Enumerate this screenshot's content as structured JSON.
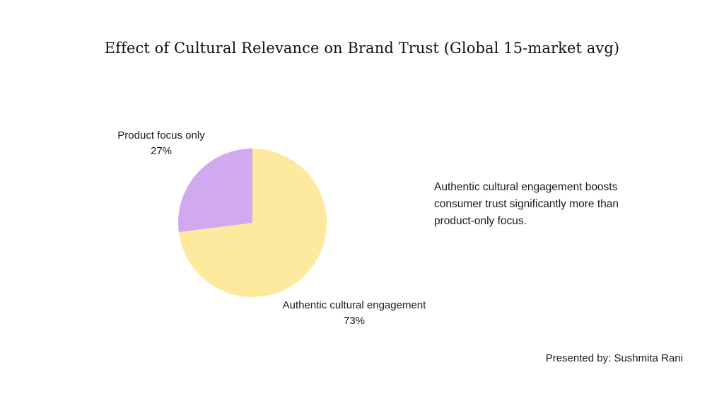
{
  "chart_data": {
    "type": "pie",
    "title": "Effect of Cultural Relevance on Brand Trust (Global 15-market avg)",
    "slices": [
      {
        "label": "Authentic cultural engagement",
        "value": 73,
        "value_label": "73%",
        "color": "#FDEA9E"
      },
      {
        "label": "Product focus only",
        "value": 27,
        "value_label": "27%",
        "color": "#D1A9EE"
      }
    ],
    "start_angle_deg": 0,
    "direction": "clockwise",
    "legend": "none"
  },
  "annotation": {
    "text": "Authentic cultural engagement boosts consumer trust significantly more than product-only focus."
  },
  "footer": {
    "text": "Presented by: Sushmita Rani"
  }
}
